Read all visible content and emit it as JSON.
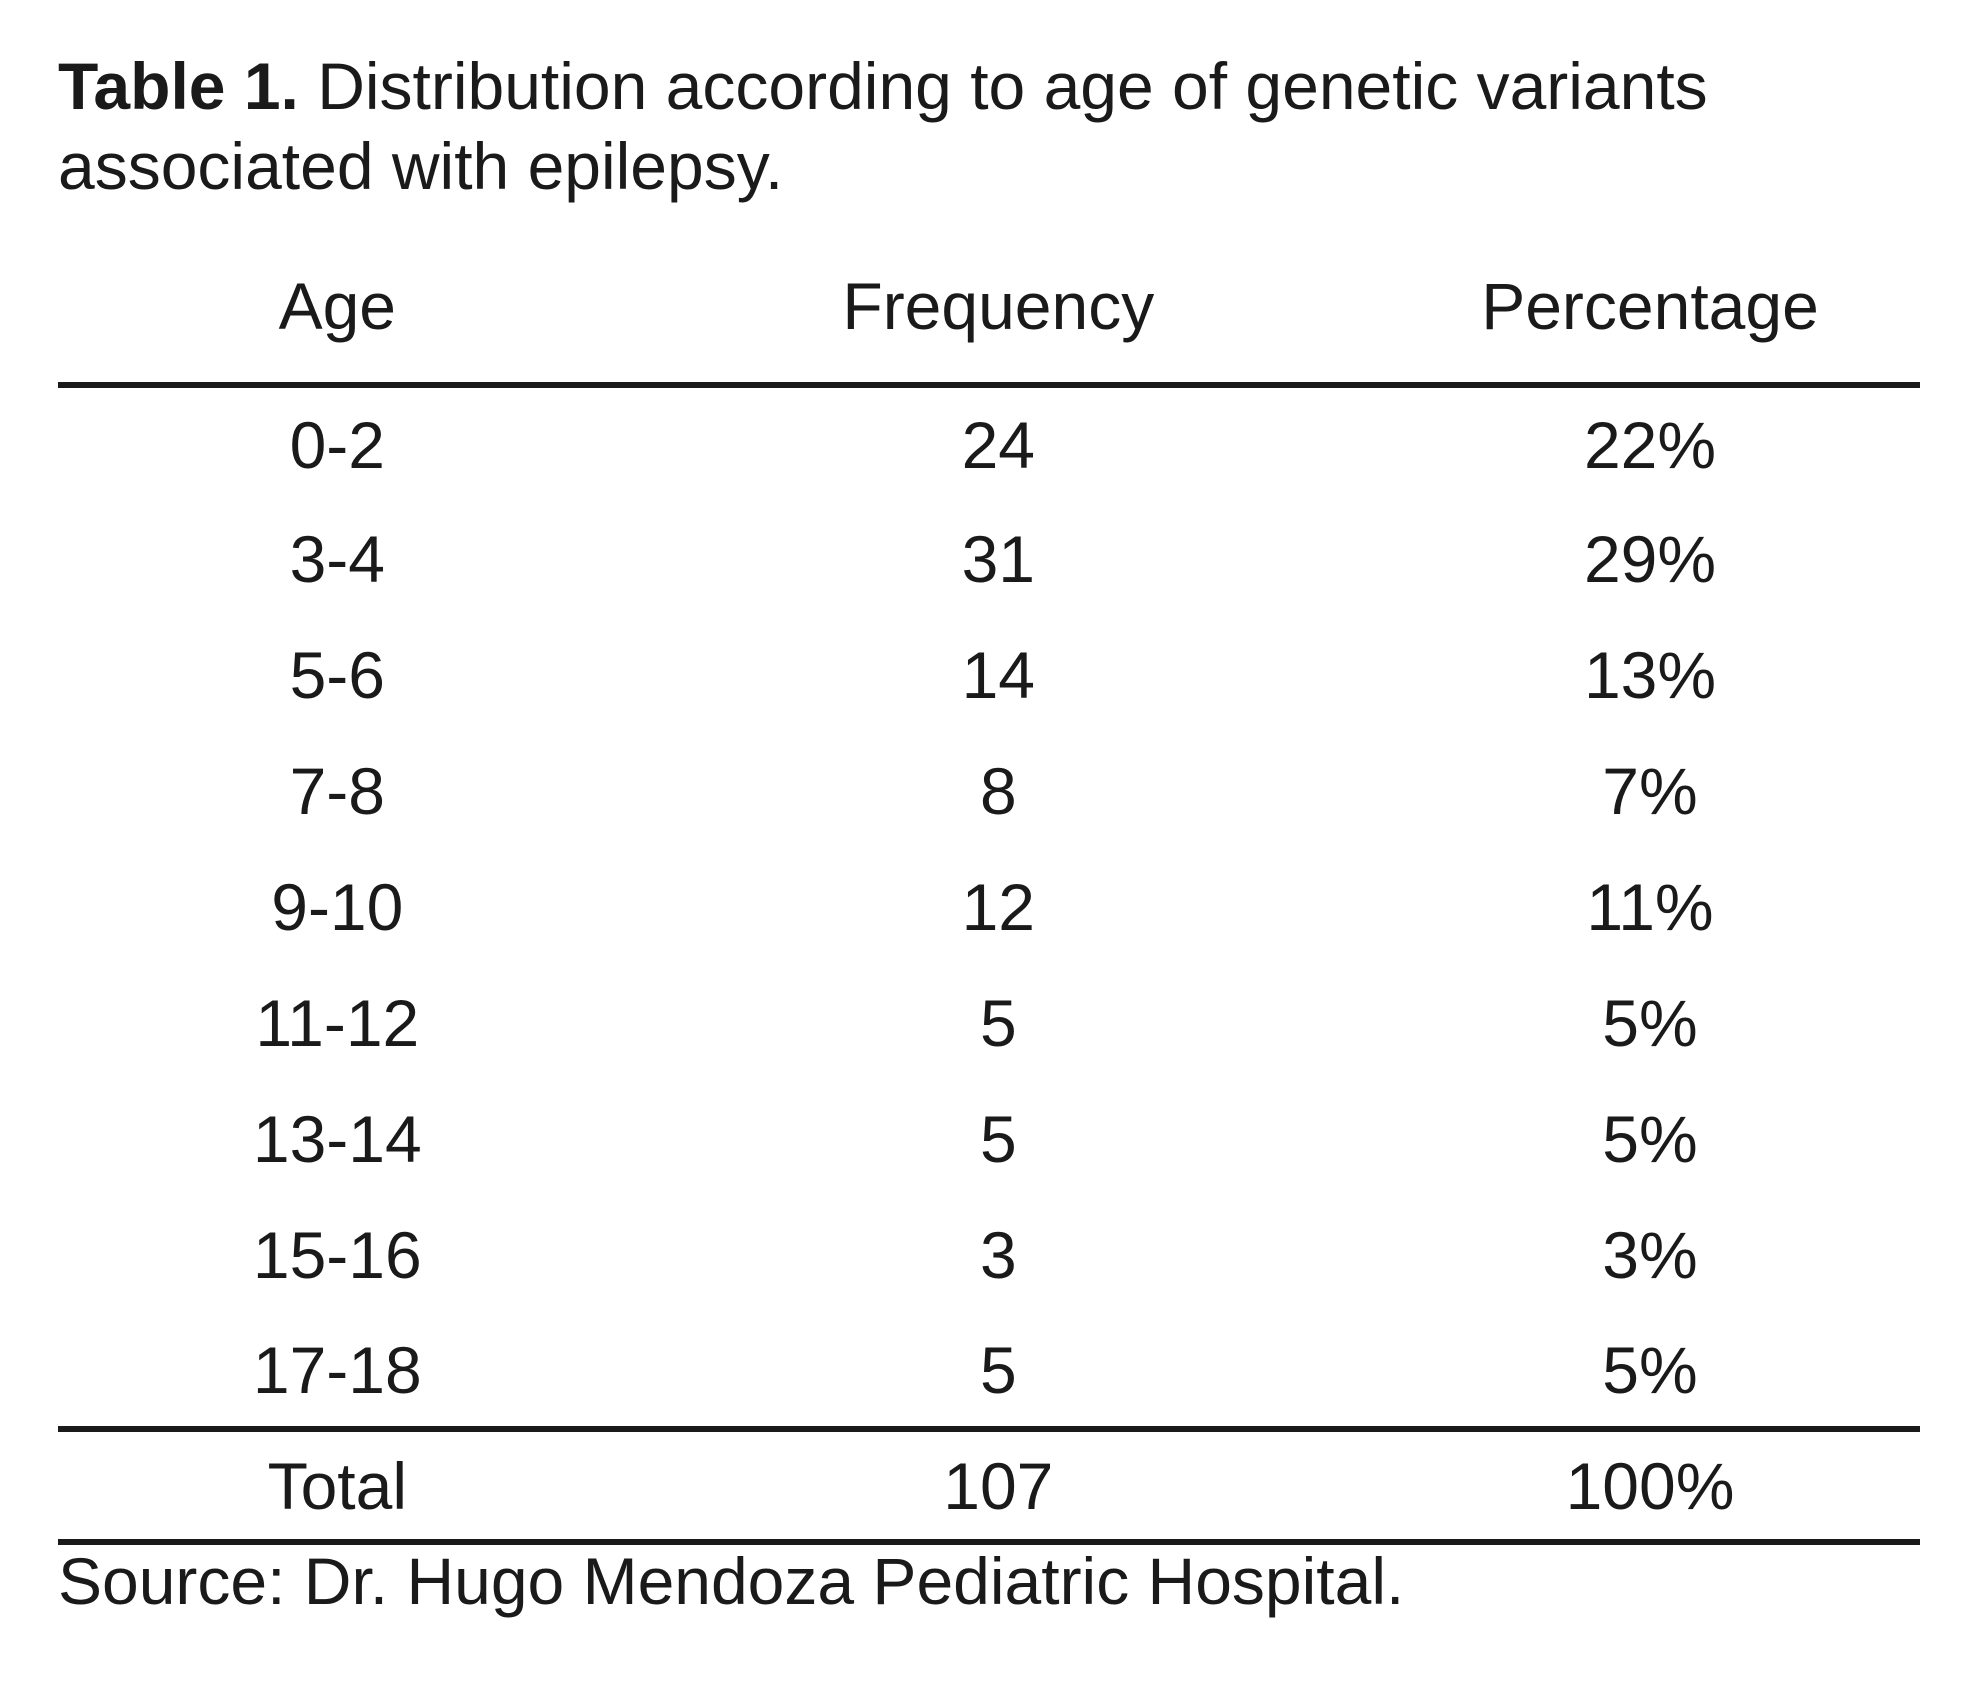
{
  "page": {
    "caption": {
      "label": "Table 1.",
      "text": "Distribution according to age of genetic variants associated with epilepsy."
    },
    "table": {
      "columns": [
        "Age",
        "Frequency",
        "Percentage"
      ],
      "rows": [
        {
          "age": "0-2",
          "frequency": "24",
          "percentage": "22%"
        },
        {
          "age": "3-4",
          "frequency": "31",
          "percentage": "29%"
        },
        {
          "age": "5-6",
          "frequency": "14",
          "percentage": "13%"
        },
        {
          "age": "7-8",
          "frequency": "8",
          "percentage": "7%"
        },
        {
          "age": "9-10",
          "frequency": "12",
          "percentage": "11%"
        },
        {
          "age": "11-12",
          "frequency": "5",
          "percentage": "5%"
        },
        {
          "age": "13-14",
          "frequency": "5",
          "percentage": "5%"
        },
        {
          "age": "15-16",
          "frequency": "3",
          "percentage": "3%"
        },
        {
          "age": "17-18",
          "frequency": "5",
          "percentage": "5%"
        }
      ],
      "total": {
        "age": "Total",
        "frequency": "107",
        "percentage": "100%"
      }
    },
    "source": "Source: Dr. Hugo Mendoza Pediatric Hospital.",
    "colors": {
      "text": "#1a1a1a",
      "background": "#ffffff",
      "rule": "#1a1a1a"
    }
  },
  "chart_data": {
    "type": "table",
    "title": "Table 1. Distribution according to age of genetic variants associated with epilepsy.",
    "columns": [
      "Age",
      "Frequency",
      "Percentage"
    ],
    "categories": [
      "0-2",
      "3-4",
      "5-6",
      "7-8",
      "9-10",
      "11-12",
      "13-14",
      "15-16",
      "17-18"
    ],
    "series": [
      {
        "name": "Frequency",
        "values": [
          24,
          31,
          14,
          8,
          12,
          5,
          5,
          3,
          5
        ]
      },
      {
        "name": "Percentage",
        "values": [
          22,
          29,
          13,
          7,
          11,
          5,
          5,
          3,
          5
        ]
      }
    ],
    "total": {
      "frequency": 107,
      "percentage": 100
    },
    "source": "Source: Dr. Hugo Mendoza Pediatric Hospital."
  }
}
